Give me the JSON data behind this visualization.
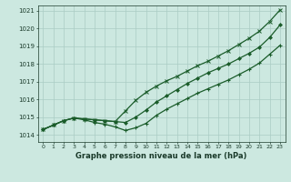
{
  "title": "Graphe pression niveau de la mer (hPa)",
  "bg_color": "#cce8e0",
  "grid_color": "#aaccc4",
  "line_color": "#1a5c2a",
  "marker_color": "#1a5c2a",
  "xlim": [
    -0.5,
    23.5
  ],
  "ylim": [
    1013.6,
    1021.3
  ],
  "yticks": [
    1014,
    1015,
    1016,
    1017,
    1018,
    1019,
    1020,
    1021
  ],
  "xticks": [
    0,
    1,
    2,
    3,
    4,
    5,
    6,
    7,
    8,
    9,
    10,
    11,
    12,
    13,
    14,
    15,
    16,
    17,
    18,
    19,
    20,
    21,
    22,
    23
  ],
  "hours": [
    0,
    1,
    2,
    3,
    4,
    5,
    6,
    7,
    8,
    9,
    10,
    11,
    12,
    13,
    14,
    15,
    16,
    17,
    18,
    19,
    20,
    21,
    22,
    23
  ],
  "line_smooth": [
    1014.3,
    1014.55,
    1014.8,
    1014.95,
    1014.9,
    1014.85,
    1014.8,
    1014.75,
    1014.7,
    1015.0,
    1015.4,
    1015.85,
    1016.2,
    1016.55,
    1016.9,
    1017.2,
    1017.5,
    1017.75,
    1018.0,
    1018.3,
    1018.6,
    1018.95,
    1019.5,
    1020.2
  ],
  "line_dip": [
    1014.3,
    1014.55,
    1014.8,
    1014.95,
    1014.85,
    1014.7,
    1014.6,
    1014.45,
    1014.25,
    1014.4,
    1014.65,
    1015.1,
    1015.45,
    1015.75,
    1016.05,
    1016.35,
    1016.6,
    1016.85,
    1017.1,
    1017.4,
    1017.7,
    1018.05,
    1018.55,
    1019.05
  ],
  "line_steep": [
    1014.3,
    1014.55,
    1014.8,
    1014.95,
    1014.9,
    1014.85,
    1014.8,
    1014.75,
    1015.35,
    1015.95,
    1016.4,
    1016.75,
    1017.05,
    1017.3,
    1017.6,
    1017.9,
    1018.15,
    1018.45,
    1018.75,
    1019.1,
    1019.45,
    1019.85,
    1020.4,
    1021.05
  ]
}
